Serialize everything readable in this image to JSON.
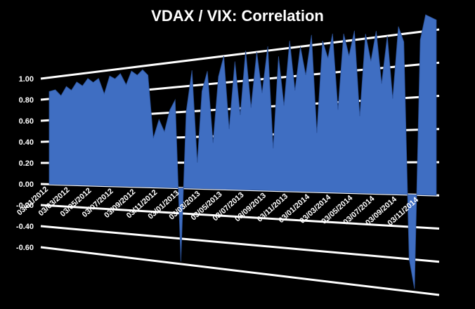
{
  "chart_data": {
    "type": "area",
    "title": "VDAX / VIX: Correlation",
    "xlabel": "",
    "ylabel": "",
    "ylim": [
      -0.6,
      1.0
    ],
    "y_ticks": [
      "1.00",
      "0.80",
      "0.60",
      "0.40",
      "0.20",
      "0.00",
      "-0.20",
      "-0.40",
      "-0.60"
    ],
    "x_tick_labels": [
      "03/01/2012",
      "03/03/2012",
      "03/05/2012",
      "03/07/2012",
      "03/09/2012",
      "03/11/2012",
      "03/01/2013",
      "03/03/2013",
      "03/05/2013",
      "03/07/2013",
      "03/09/2013",
      "03/11/2013",
      "03/01/2014",
      "03/03/2014",
      "03/05/2014",
      "03/07/2014",
      "03/09/2014",
      "03/11/2014"
    ],
    "grid": true,
    "legend": "none",
    "series_color": "#3f6ec2",
    "series": [
      {
        "x": [
          "2012-01-03",
          "2012-01-20",
          "2012-02-05",
          "2012-02-20",
          "2012-03-05",
          "2012-03-20",
          "2012-04-05",
          "2012-04-20",
          "2012-05-05",
          "2012-05-20",
          "2012-06-05",
          "2012-06-20",
          "2012-07-05",
          "2012-07-20",
          "2012-08-05",
          "2012-08-20",
          "2012-09-05",
          "2012-09-20",
          "2012-10-05",
          "2012-10-20",
          "2012-11-05",
          "2012-11-20",
          "2012-12-05",
          "2012-12-20",
          "2013-01-05",
          "2013-01-20",
          "2013-02-05",
          "2013-02-20",
          "2013-03-05",
          "2013-03-20",
          "2013-04-05",
          "2013-04-20",
          "2013-05-05",
          "2013-05-20",
          "2013-06-05",
          "2013-06-20",
          "2013-07-05",
          "2013-07-20",
          "2013-08-05",
          "2013-08-20",
          "2013-09-05",
          "2013-09-20",
          "2013-10-05",
          "2013-10-20",
          "2013-11-05",
          "2013-11-20",
          "2013-12-05",
          "2013-12-20",
          "2014-01-05",
          "2014-01-20",
          "2014-02-05",
          "2014-02-20",
          "2014-03-05",
          "2014-03-20",
          "2014-04-05",
          "2014-04-20",
          "2014-05-05",
          "2014-05-20",
          "2014-06-05",
          "2014-06-20",
          "2014-07-05",
          "2014-07-20",
          "2014-08-05",
          "2014-08-20",
          "2014-09-05",
          "2014-09-20",
          "2014-10-05",
          "2014-10-20",
          "2014-11-05",
          "2014-11-20",
          "2014-12-05",
          "2014-12-20"
        ],
        "values": [
          0.87,
          0.88,
          0.82,
          0.9,
          0.86,
          0.93,
          0.89,
          0.95,
          0.91,
          0.94,
          0.8,
          0.95,
          0.92,
          0.96,
          0.86,
          0.97,
          0.93,
          0.97,
          0.92,
          0.4,
          0.55,
          0.45,
          0.62,
          0.7,
          -0.58,
          0.6,
          0.92,
          0.2,
          0.75,
          0.9,
          0.35,
          0.85,
          1.0,
          0.45,
          0.95,
          0.55,
          1.02,
          0.6,
          1.0,
          0.7,
          1.03,
          0.3,
          0.95,
          0.6,
          1.05,
          0.7,
          1.0,
          0.8,
          1.07,
          0.4,
          1.02,
          0.9,
          1.06,
          0.55,
          1.05,
          0.9,
          1.06,
          0.5,
          1.03,
          0.85,
          1.04,
          0.7,
          1.0,
          0.6,
          1.05,
          0.95,
          -0.4,
          -0.58,
          0.95,
          1.1,
          1.08,
          1.06
        ]
      }
    ]
  }
}
